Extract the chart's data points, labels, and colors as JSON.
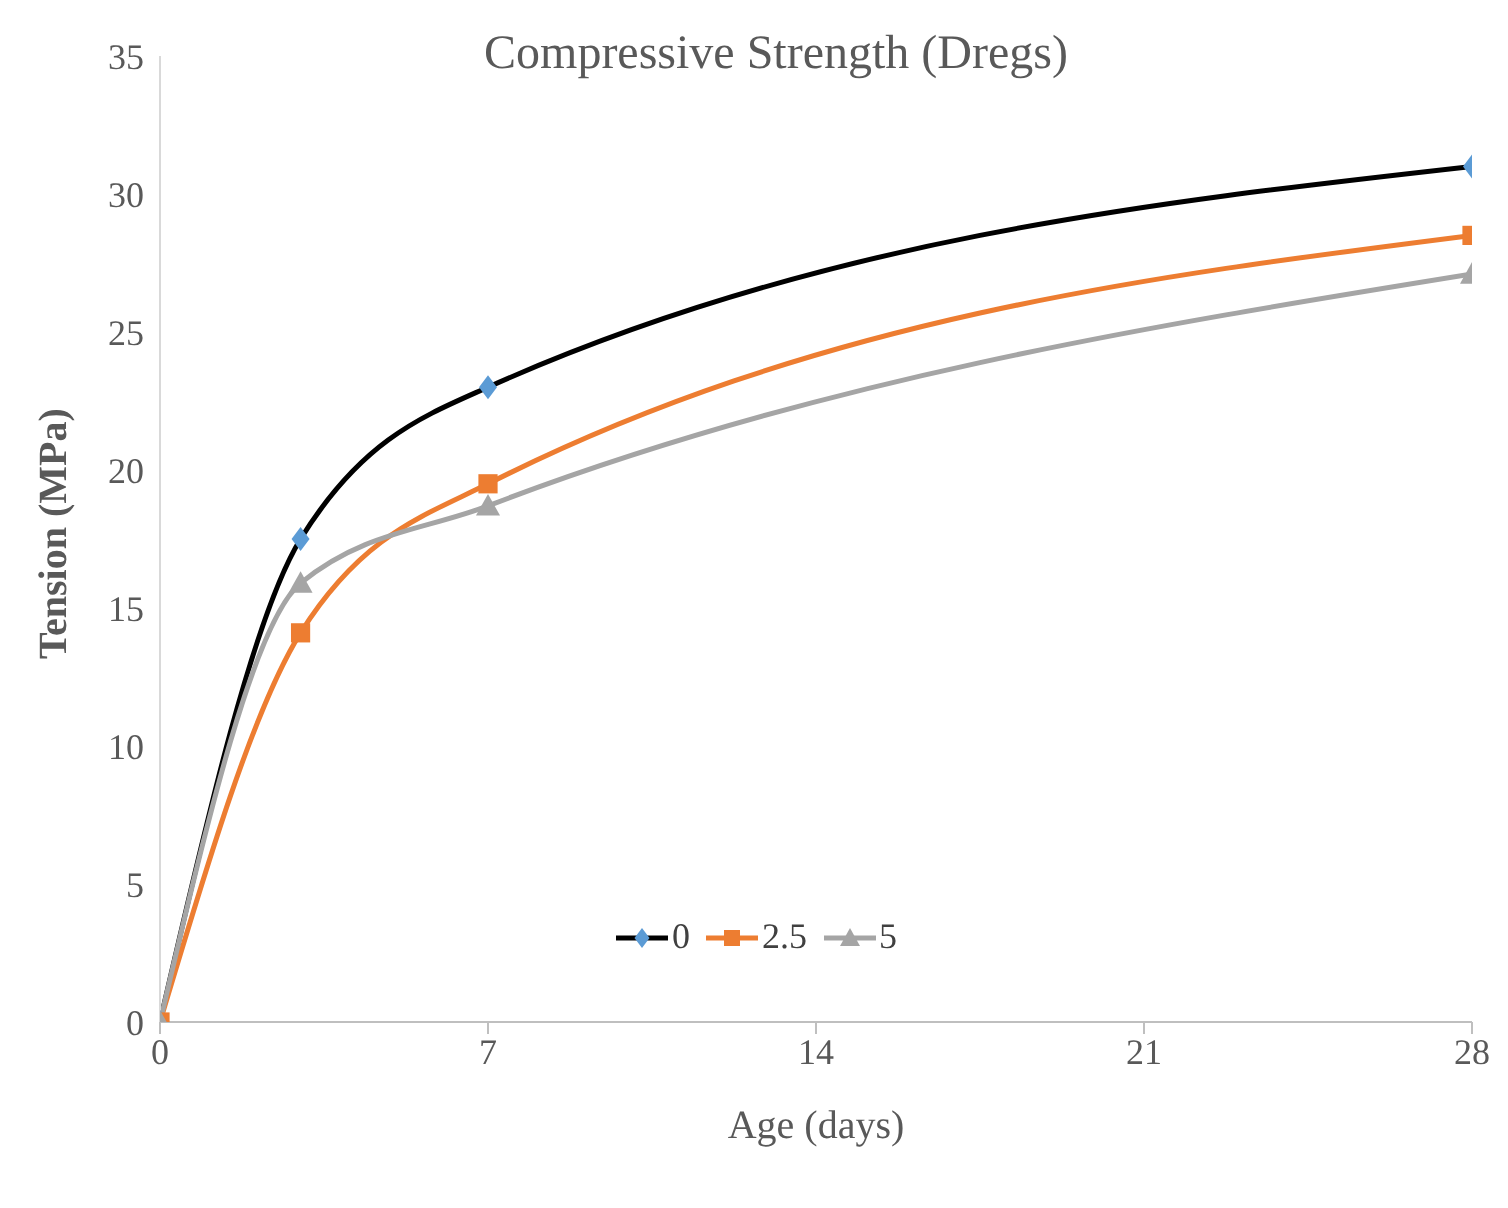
{
  "chart_data": {
    "type": "line",
    "title": "Compressive Strength (Dregs)",
    "xlabel": "Age (days)",
    "ylabel": "Tension (MPa)",
    "x": [
      0,
      3,
      7,
      28
    ],
    "series": [
      {
        "name": "0",
        "color": "#000000",
        "colors": [
          "#5b9bd5",
          "#5b9bd5",
          "#5b9bd5",
          "#5b9bd5"
        ],
        "marker": "diamond",
        "values": [
          0,
          17.5,
          23,
          31
        ]
      },
      {
        "name": "2.5",
        "color": "#ed7d31",
        "colors": [
          "#ed7d31",
          "#ed7d31",
          "#ed7d31",
          "#ed7d31"
        ],
        "marker": "square",
        "values": [
          0,
          14.1,
          19.5,
          28.5
        ]
      },
      {
        "name": "5",
        "color": "#a5a5a5",
        "colors": [
          "#a5a5a5",
          "#a5a5a5",
          "#a5a5a5",
          "#a5a5a5"
        ],
        "marker": "triangle",
        "values": [
          0,
          15.9,
          18.7,
          27.1
        ]
      }
    ],
    "xlim": [
      0,
      28
    ],
    "xticks": [
      0,
      7,
      14,
      21,
      28
    ],
    "ylim": [
      0,
      35
    ],
    "yticks": [
      0,
      5,
      10,
      15,
      20,
      25,
      30,
      35
    ],
    "grid": false,
    "legend": "bottom",
    "line_style": "solid"
  }
}
